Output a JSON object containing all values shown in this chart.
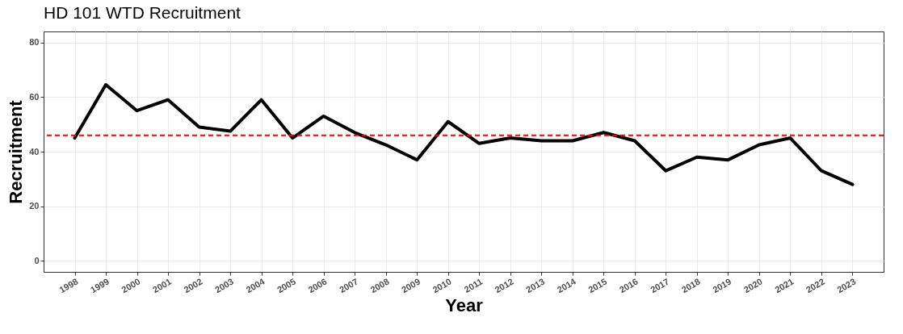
{
  "chart_data": {
    "type": "line",
    "title": "HD 101 WTD Recruitment",
    "xlabel": "Year",
    "ylabel": "Recruitment",
    "categories": [
      "1998",
      "1999",
      "2000",
      "2001",
      "2002",
      "2003",
      "2004",
      "2005",
      "2006",
      "2007",
      "2008",
      "2009",
      "2010",
      "2011",
      "2012",
      "2013",
      "2014",
      "2015",
      "2016",
      "2017",
      "2018",
      "2019",
      "2020",
      "2021",
      "2022",
      "2023"
    ],
    "series": [
      {
        "color": "#000000",
        "values": [
          45,
          64.5,
          55,
          59,
          49,
          47.5,
          59,
          45,
          53,
          47,
          42.5,
          37,
          51,
          43,
          45,
          44,
          44,
          47,
          44,
          33,
          38,
          37,
          42.5,
          45,
          33,
          28
        ]
      }
    ],
    "ylim": [
      -4,
      84
    ],
    "yticks": [
      0,
      20,
      40,
      60,
      80
    ],
    "grid": true,
    "marker": "none",
    "line_style": "solid",
    "ref_lines": [
      {
        "axis": "y",
        "value": 46,
        "color": "#ff0000",
        "line_style": "dashed"
      }
    ]
  }
}
